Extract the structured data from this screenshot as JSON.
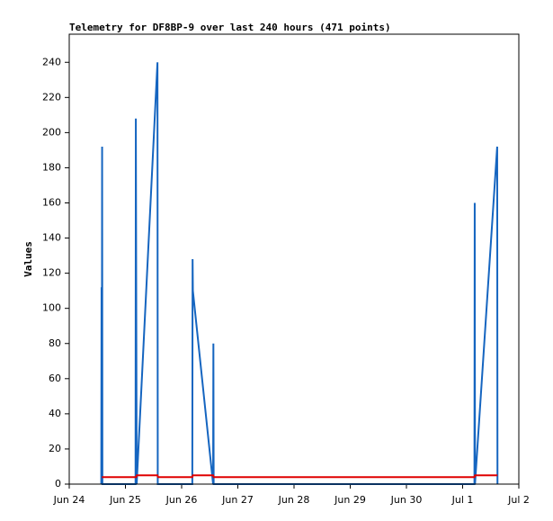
{
  "chart_data": {
    "type": "line",
    "title": "Telemetry for DF8BP-9 over last 240 hours (471 points)",
    "y_label": "Values",
    "xlim": [
      0,
      8
    ],
    "xticks": [
      {
        "value": 0,
        "label": "Jun 24"
      },
      {
        "value": 1,
        "label": "Jun 25"
      },
      {
        "value": 2,
        "label": "Jun 26"
      },
      {
        "value": 3,
        "label": "Jun 27"
      },
      {
        "value": 4,
        "label": "Jun 28"
      },
      {
        "value": 5,
        "label": "Jun 29"
      },
      {
        "value": 6,
        "label": "Jun 30"
      },
      {
        "value": 7,
        "label": "Jul 1"
      },
      {
        "value": 8,
        "label": "Jul 2"
      }
    ],
    "ylim": [
      0,
      256
    ],
    "yticks": [
      0,
      20,
      40,
      60,
      80,
      100,
      120,
      140,
      160,
      180,
      200,
      220,
      240
    ],
    "series": [
      {
        "color": "#1565c0",
        "x": [
          0.57,
          0.575,
          0.58,
          0.585,
          0.59,
          1.18,
          1.185,
          1.2,
          1.57,
          1.575,
          2.19,
          2.195,
          2.2,
          2.56,
          2.565,
          2.57,
          7.21,
          7.215,
          7.22,
          7.615,
          7.62
        ],
        "values": [
          0,
          112,
          0,
          192,
          0,
          0,
          208,
          0,
          240,
          0,
          0,
          128,
          110,
          0,
          80,
          0,
          0,
          160,
          0,
          192,
          0
        ]
      },
      {
        "color": "#e00000",
        "x": [
          0.58,
          1.19,
          1.2,
          1.57,
          1.58,
          2.19,
          2.2,
          2.56,
          2.57,
          7.21,
          7.22,
          7.62
        ],
        "values": [
          4,
          4,
          5,
          5,
          4,
          4,
          5,
          5,
          4,
          4,
          5,
          5
        ]
      }
    ]
  }
}
